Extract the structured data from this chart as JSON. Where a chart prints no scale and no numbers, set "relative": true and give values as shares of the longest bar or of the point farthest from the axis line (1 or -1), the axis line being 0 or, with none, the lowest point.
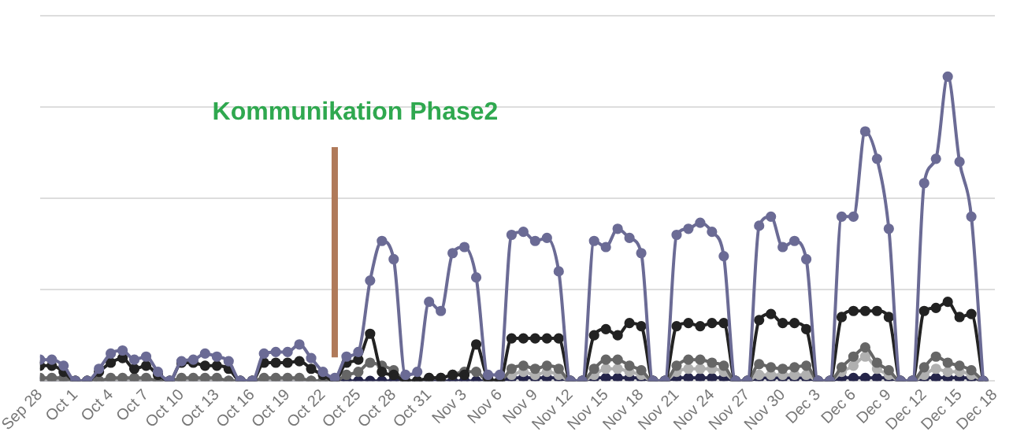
{
  "chart_data": {
    "type": "line",
    "relative": true,
    "grid": "y",
    "legend": false,
    "marker": "circle",
    "line_style": "solid",
    "xlim": [
      "--09-28",
      "--12-18"
    ],
    "xticks": [
      {
        "value": "--09-28",
        "label": "Sep 28"
      },
      {
        "value": "--10-01",
        "label": "Oct 1"
      },
      {
        "value": "--10-04",
        "label": "Oct 4"
      },
      {
        "value": "--10-07",
        "label": "Oct 7"
      },
      {
        "value": "--10-10",
        "label": "Oct 10"
      },
      {
        "value": "--10-13",
        "label": "Oct 13"
      },
      {
        "value": "--10-16",
        "label": "Oct 16"
      },
      {
        "value": "--10-19",
        "label": "Oct 19"
      },
      {
        "value": "--10-22",
        "label": "Oct 22"
      },
      {
        "value": "--10-25",
        "label": "Oct 25"
      },
      {
        "value": "--10-28",
        "label": "Oct 28"
      },
      {
        "value": "--10-31",
        "label": "Oct 31"
      },
      {
        "value": "--11-03",
        "label": "Nov 3"
      },
      {
        "value": "--11-06",
        "label": "Nov 6"
      },
      {
        "value": "--11-09",
        "label": "Nov 9"
      },
      {
        "value": "--11-12",
        "label": "Nov 12"
      },
      {
        "value": "--11-15",
        "label": "Nov 15"
      },
      {
        "value": "--11-18",
        "label": "Nov 18"
      },
      {
        "value": "--11-21",
        "label": "Nov 21"
      },
      {
        "value": "--11-24",
        "label": "Nov 24"
      },
      {
        "value": "--11-27",
        "label": "Nov 27"
      },
      {
        "value": "--11-30",
        "label": "Nov 30"
      },
      {
        "value": "--12-03",
        "label": "Dec 3"
      },
      {
        "value": "--12-06",
        "label": "Dec 6"
      },
      {
        "value": "--12-09",
        "label": "Dec 9"
      },
      {
        "value": "--12-12",
        "label": "Dec 12"
      },
      {
        "value": "--12-15",
        "label": "Dec 15"
      },
      {
        "value": "--12-18",
        "label": "Dec 18"
      }
    ],
    "x": [
      "--09-28",
      "--09-29",
      "--09-30",
      "--10-01",
      "--10-02",
      "--10-03",
      "--10-04",
      "--10-05",
      "--10-06",
      "--10-07",
      "--10-08",
      "--10-09",
      "--10-10",
      "--10-11",
      "--10-12",
      "--10-13",
      "--10-14",
      "--10-15",
      "--10-16",
      "--10-17",
      "--10-18",
      "--10-19",
      "--10-20",
      "--10-21",
      "--10-22",
      "--10-23",
      "--10-24",
      "--10-25",
      "--10-26",
      "--10-27",
      "--10-28",
      "--10-29",
      "--10-30",
      "--10-31",
      "--11-01",
      "--11-02",
      "--11-03",
      "--11-04",
      "--11-05",
      "--11-06",
      "--11-07",
      "--11-08",
      "--11-09",
      "--11-10",
      "--11-11",
      "--11-12",
      "--11-13",
      "--11-14",
      "--11-15",
      "--11-16",
      "--11-17",
      "--11-18",
      "--11-19",
      "--11-20",
      "--11-21",
      "--11-22",
      "--11-23",
      "--11-24",
      "--11-25",
      "--11-26",
      "--11-27",
      "--11-28",
      "--11-29",
      "--11-30",
      "--12-01",
      "--12-02",
      "--12-03",
      "--12-04",
      "--12-05",
      "--12-06",
      "--12-07",
      "--12-08",
      "--12-09",
      "--12-10",
      "--12-11",
      "--12-12",
      "--12-13",
      "--12-14",
      "--12-15",
      "--12-16",
      "--12-17"
    ],
    "series": [
      {
        "color": "#6b6b95",
        "values": [
          0.07,
          0.07,
          0.05,
          0,
          0,
          0.04,
          0.09,
          0.1,
          0.07,
          0.08,
          0.03,
          0,
          0.065,
          0.07,
          0.09,
          0.08,
          0.065,
          0,
          0,
          0.09,
          0.095,
          0.095,
          0.12,
          0.075,
          0.03,
          0.01,
          0.08,
          0.095,
          0.33,
          0.46,
          0.4,
          0.02,
          0.03,
          0.26,
          0.23,
          0.42,
          0.44,
          0.34,
          0.02,
          0.02,
          0.48,
          0.49,
          0.46,
          0.47,
          0.36,
          0,
          0,
          0.46,
          0.44,
          0.5,
          0.47,
          0.42,
          0,
          0,
          0.48,
          0.5,
          0.52,
          0.49,
          0.41,
          0,
          0,
          0.51,
          0.54,
          0.44,
          0.46,
          0.4,
          0,
          0,
          0.54,
          0.54,
          0.82,
          0.73,
          0.5,
          0,
          0,
          0.65,
          0.73,
          1,
          0.72,
          0.54,
          0
        ]
      },
      {
        "color": "#222222",
        "values": [
          0.05,
          0.05,
          0.03,
          0,
          0,
          0.03,
          0.06,
          0.075,
          0.04,
          0.05,
          0.02,
          0,
          0.06,
          0.06,
          0.05,
          0.05,
          0.04,
          0,
          0,
          0.06,
          0.06,
          0.06,
          0.065,
          0.04,
          0.02,
          0,
          0.06,
          0.07,
          0.155,
          0.03,
          0.02,
          0,
          0,
          0.01,
          0.01,
          0.02,
          0.02,
          0.12,
          0.01,
          0,
          0.14,
          0.14,
          0.14,
          0.14,
          0.14,
          0,
          0,
          0.15,
          0.17,
          0.15,
          0.19,
          0.18,
          0,
          0,
          0.18,
          0.19,
          0.18,
          0.19,
          0.19,
          0,
          0,
          0.2,
          0.22,
          0.19,
          0.19,
          0.17,
          0,
          0,
          0.21,
          0.23,
          0.23,
          0.23,
          0.21,
          0,
          0,
          0.23,
          0.24,
          0.26,
          0.21,
          0.22,
          0
        ]
      },
      {
        "color": "#666666",
        "values": [
          0.01,
          0.01,
          0.01,
          0,
          0,
          0,
          0.01,
          0.01,
          0.01,
          0.01,
          0,
          0,
          0.01,
          0.01,
          0.01,
          0.01,
          0,
          0,
          0,
          0.01,
          0.01,
          0.01,
          0.01,
          0,
          0,
          0,
          0.02,
          0.03,
          0.06,
          0.05,
          0.035,
          0,
          0,
          0.01,
          0.01,
          0.02,
          0.03,
          0.03,
          0,
          0,
          0.04,
          0.05,
          0.04,
          0.05,
          0.04,
          0,
          0,
          0.04,
          0.07,
          0.07,
          0.05,
          0.035,
          0,
          0,
          0.05,
          0.07,
          0.07,
          0.06,
          0.05,
          0,
          0,
          0.055,
          0.045,
          0.04,
          0.045,
          0.05,
          0,
          0,
          0.045,
          0.08,
          0.11,
          0.06,
          0.035,
          0,
          0,
          0.045,
          0.08,
          0.06,
          0.05,
          0.035,
          0
        ]
      },
      {
        "color": "#b0b0b0",
        "values": [
          0,
          0,
          0,
          0,
          0,
          0,
          0,
          0,
          0,
          0,
          0,
          0,
          0,
          0,
          0,
          0,
          0,
          0,
          0,
          0,
          0,
          0,
          0,
          0,
          0,
          0,
          null,
          null,
          null,
          null,
          null,
          null,
          null,
          null,
          null,
          null,
          null,
          null,
          null,
          null,
          0.02,
          0.03,
          0.02,
          0.03,
          0.02,
          0,
          0,
          0.02,
          0.04,
          0.04,
          0.03,
          0.02,
          0,
          0,
          0.03,
          0.04,
          0.04,
          0.04,
          0.03,
          0,
          0,
          0.02,
          0.02,
          0.02,
          0.02,
          0.02,
          0,
          0,
          0.03,
          0.05,
          0.08,
          0.04,
          0.02,
          0,
          0,
          0.02,
          0.04,
          0.03,
          0.03,
          0.02,
          0
        ]
      },
      {
        "color": "#25254a",
        "values": [
          0,
          0,
          0,
          0,
          0,
          0,
          0,
          0,
          0,
          0,
          0,
          0,
          0,
          0,
          0,
          0,
          0,
          0,
          0,
          0,
          0,
          0,
          0,
          0,
          0,
          0,
          0,
          0,
          0,
          0,
          0,
          0,
          0,
          0,
          0,
          0,
          0,
          0,
          0,
          0,
          0.01,
          0.01,
          0.01,
          0.01,
          0.01,
          0,
          0,
          0.01,
          0.01,
          0.01,
          0.01,
          0.01,
          0,
          0,
          0.01,
          0.01,
          0.01,
          0.01,
          0.01,
          0,
          0,
          0.01,
          0.01,
          0.01,
          0.01,
          0.01,
          0,
          0,
          0.01,
          0.01,
          0.01,
          0.01,
          0.01,
          0,
          0,
          0.01,
          0.01,
          0.01,
          0.01,
          0.01,
          0
        ]
      }
    ],
    "ref_lines": [
      {
        "axis": "x",
        "value": "--10-23",
        "label": "Kommunikation Phase2",
        "color": "#b07a5a"
      }
    ]
  }
}
